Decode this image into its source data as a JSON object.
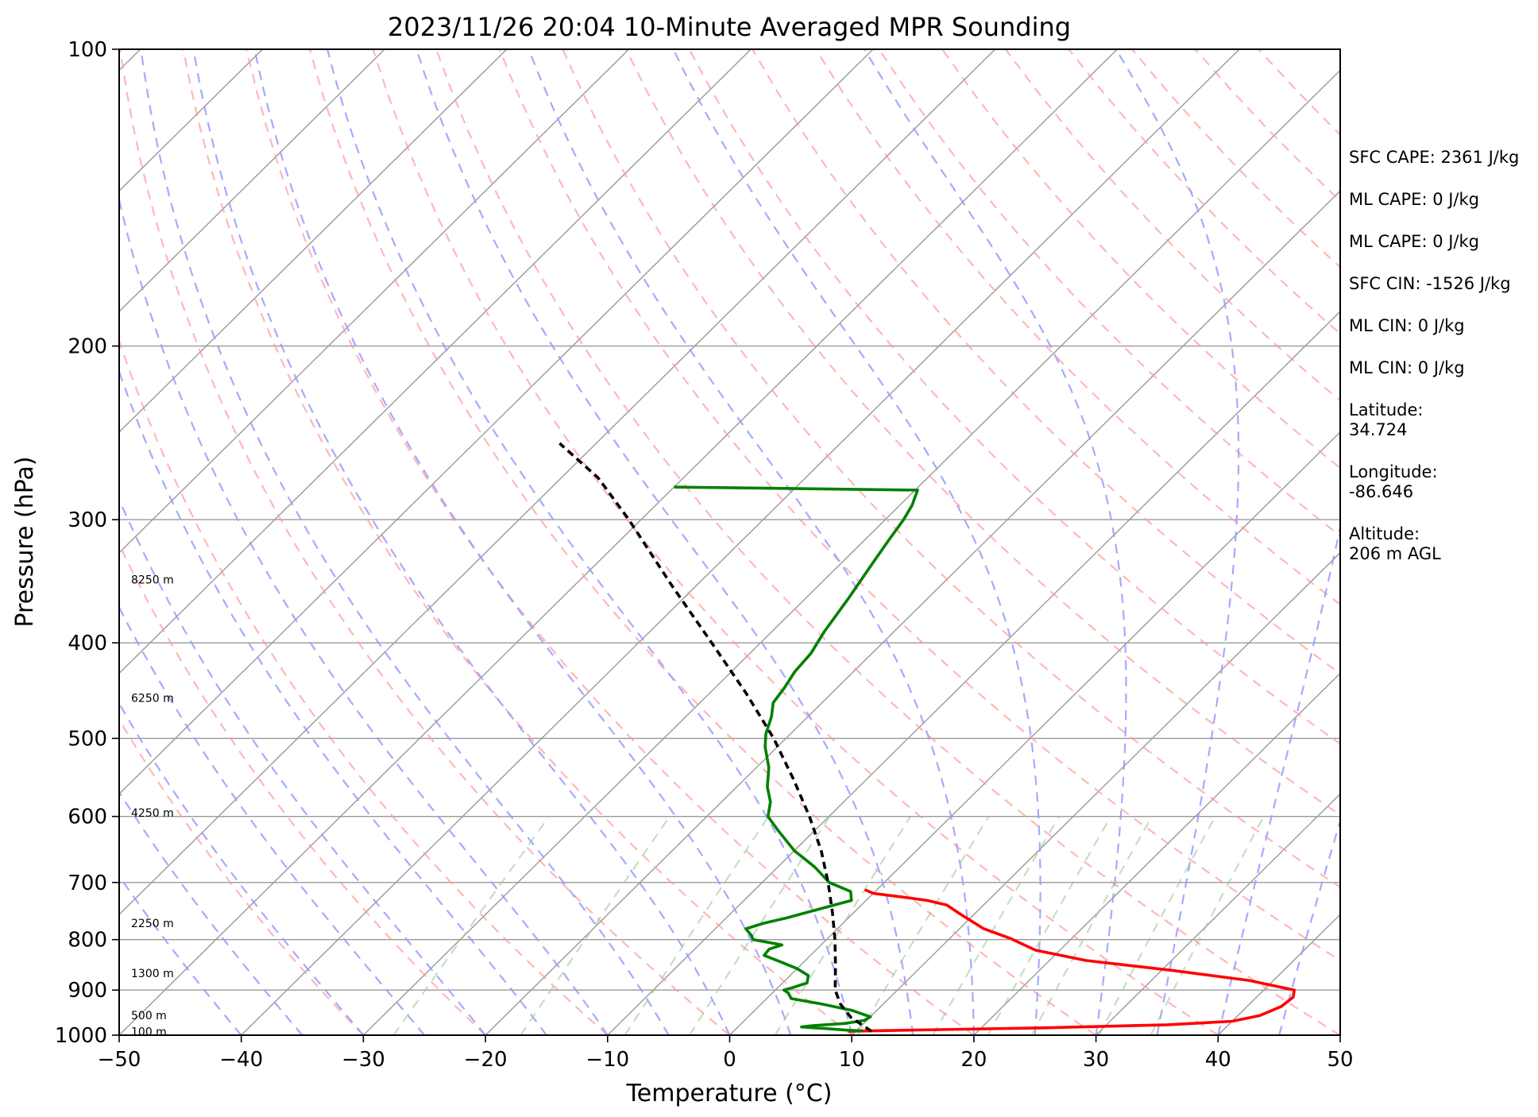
{
  "chart_data": {
    "type": "skew-t",
    "title": "2023/11/26 20:04 10-Minute Averaged MPR Sounding",
    "xlabel": "Temperature (°C)",
    "ylabel": "Pressure (hPa)",
    "xlim": [
      -50,
      50
    ],
    "ylim": [
      1000,
      100
    ],
    "y_scale": "log",
    "grid": true,
    "x_ticks": [
      -50,
      -40,
      -30,
      -20,
      -10,
      0,
      10,
      20,
      30,
      40,
      50
    ],
    "x_tick_labels": [
      "−50",
      "−40",
      "−30",
      "−20",
      "−10",
      "0",
      "10",
      "20",
      "30",
      "40",
      "50"
    ],
    "y_ticks": [
      100,
      200,
      300,
      400,
      500,
      600,
      700,
      800,
      900,
      1000
    ],
    "y_tick_labels": [
      "100",
      "200",
      "300",
      "400",
      "500",
      "600",
      "700",
      "800",
      "900",
      "1000"
    ],
    "height_labels": [
      {
        "text": "8250 m",
        "p": 345
      },
      {
        "text": "6250 m",
        "p": 455
      },
      {
        "text": "4250 m",
        "p": 595
      },
      {
        "text": "2250 m",
        "p": 770
      },
      {
        "text": "1300 m",
        "p": 865
      },
      {
        "text": "500 m",
        "p": 955
      },
      {
        "text": "100 m",
        "p": 992
      }
    ],
    "series": [
      {
        "color": "#ff0000",
        "points": [
          [
            991,
            9.4
          ],
          [
            988,
            15
          ],
          [
            983,
            25
          ],
          [
            976,
            35
          ],
          [
            968,
            40
          ],
          [
            955,
            41.8
          ],
          [
            935,
            42.8
          ],
          [
            915,
            43
          ],
          [
            900,
            42.5
          ],
          [
            880,
            38
          ],
          [
            860,
            31
          ],
          [
            840,
            23
          ],
          [
            820,
            18
          ],
          [
            798,
            15
          ],
          [
            780,
            12
          ],
          [
            755,
            9
          ],
          [
            738,
            7
          ],
          [
            730,
            5
          ],
          [
            725,
            3
          ],
          [
            718,
            0
          ],
          [
            712,
            -1
          ]
        ]
      },
      {
        "color": "#008000",
        "points": [
          [
            990,
            10.5
          ],
          [
            988,
            9
          ],
          [
            984,
            7
          ],
          [
            981,
            5.2
          ],
          [
            978,
            6
          ],
          [
            973,
            8.5
          ],
          [
            966,
            9.8
          ],
          [
            958,
            10
          ],
          [
            944,
            8
          ],
          [
            930,
            5
          ],
          [
            918,
            2
          ],
          [
            906,
            1.3
          ],
          [
            900,
            0.7
          ],
          [
            895,
            1.2
          ],
          [
            885,
            2
          ],
          [
            870,
            1.5
          ],
          [
            856,
            0
          ],
          [
            842,
            -2
          ],
          [
            830,
            -3.8
          ],
          [
            818,
            -3.9
          ],
          [
            810,
            -3.2
          ],
          [
            800,
            -6
          ],
          [
            792,
            -6.5
          ],
          [
            780,
            -7.5
          ],
          [
            770,
            -6.5
          ],
          [
            760,
            -5
          ],
          [
            744,
            -3
          ],
          [
            730,
            -1.2
          ],
          [
            715,
            -2
          ],
          [
            700,
            -4.5
          ],
          [
            675,
            -7
          ],
          [
            650,
            -10
          ],
          [
            620,
            -13
          ],
          [
            600,
            -15
          ],
          [
            580,
            -16
          ],
          [
            560,
            -17.5
          ],
          [
            535,
            -19
          ],
          [
            510,
            -21
          ],
          [
            495,
            -22
          ],
          [
            475,
            -23
          ],
          [
            460,
            -24
          ],
          [
            445,
            -24.3
          ],
          [
            428,
            -24.8
          ],
          [
            410,
            -25
          ],
          [
            390,
            -25.7
          ],
          [
            360,
            -26.5
          ],
          [
            330,
            -27.5
          ],
          [
            315,
            -28
          ],
          [
            300,
            -28.5
          ],
          [
            290,
            -29
          ],
          [
            280,
            -29.8
          ],
          [
            278,
            -50
          ]
        ]
      },
      {
        "color": "#000000",
        "dash": "9,6",
        "points": [
          [
            991,
            11.3
          ],
          [
            960,
            8.5
          ],
          [
            930,
            6.5
          ],
          [
            900,
            4.9
          ],
          [
            850,
            2.9
          ],
          [
            800,
            0.7
          ],
          [
            750,
            -1.8
          ],
          [
            700,
            -4.6
          ],
          [
            650,
            -7.8
          ],
          [
            600,
            -11.6
          ],
          [
            550,
            -16
          ],
          [
            500,
            -21
          ],
          [
            450,
            -27
          ],
          [
            400,
            -34
          ],
          [
            350,
            -42
          ],
          [
            300,
            -51
          ],
          [
            272,
            -57
          ],
          [
            251,
            -63
          ]
        ]
      }
    ]
  },
  "side_panel": {
    "sfc_cape": "SFC CAPE: 2361 J/kg",
    "ml_cape_1": "ML CAPE: 0 J/kg",
    "ml_cape_2": "ML CAPE: 0 J/kg",
    "sfc_cin": "SFC CIN: -1526 J/kg",
    "ml_cin_1": "ML CIN: 0 J/kg",
    "ml_cin_2": "ML CIN: 0 J/kg",
    "latitude": "Latitude:\n34.724",
    "longitude": "Longitude:\n-86.646",
    "altitude": "Altitude:\n206 m AGL"
  },
  "colors": {
    "temperature": "#ff0000",
    "dewpoint": "#008000",
    "parcel": "#000000",
    "dry_adiabat": "#ff9999",
    "moist_adiabat": "#9999ff",
    "mixing_ratio": "#99cc99",
    "isotherm": "#999999"
  }
}
